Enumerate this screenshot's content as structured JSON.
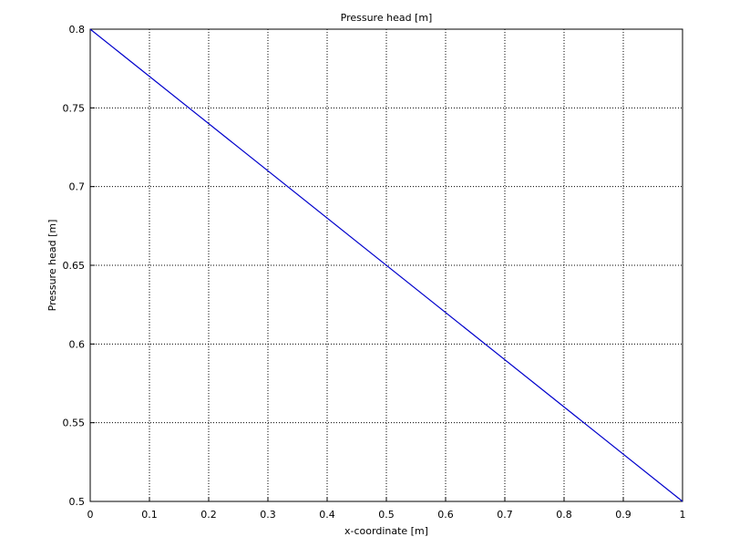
{
  "chart_data": {
    "type": "line",
    "title": "Pressure head [m]",
    "x_label": "x-coordinate [m]",
    "y_label": "Pressure head [m]",
    "x": [
      0,
      1
    ],
    "series": [
      {
        "color": "#0000cc",
        "values": [
          0.8,
          0.5
        ]
      }
    ],
    "xlim": [
      0,
      1
    ],
    "xticks": [
      0,
      0.1,
      0.2,
      0.3,
      0.4,
      0.5,
      0.6,
      0.7,
      0.8,
      0.9,
      1
    ],
    "ylim": [
      0.5,
      0.8
    ],
    "yticks": [
      0.5,
      0.55,
      0.6,
      0.65,
      0.7,
      0.75,
      0.8
    ],
    "grid": true
  }
}
